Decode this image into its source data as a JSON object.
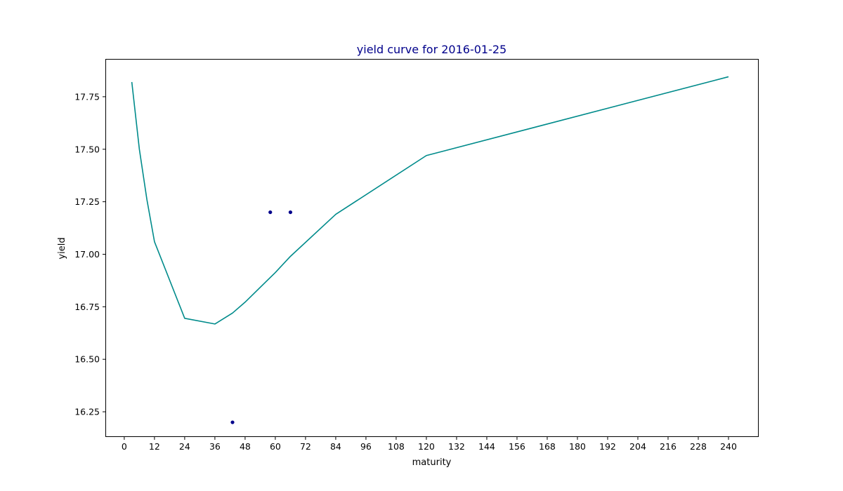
{
  "chart_data": {
    "type": "line",
    "title": "yield curve for 2016-01-25",
    "xlabel": "maturity",
    "ylabel": "yield",
    "xlim": [
      -7.5,
      252
    ],
    "ylim": [
      16.13,
      17.93
    ],
    "xticks": [
      0,
      12,
      24,
      36,
      48,
      60,
      72,
      84,
      96,
      108,
      120,
      132,
      144,
      156,
      168,
      180,
      192,
      204,
      216,
      228,
      240
    ],
    "yticks": [
      16.25,
      16.5,
      16.75,
      17.0,
      17.25,
      17.5,
      17.75
    ],
    "ytick_labels": [
      "16.25",
      "16.50",
      "16.75",
      "17.00",
      "17.25",
      "17.50",
      "17.75"
    ],
    "grid": false,
    "colors": {
      "curve": "#008b8b",
      "points": "#00008b",
      "title": "#00008b"
    },
    "series": [
      {
        "type": "line",
        "x": [
          3,
          6,
          9,
          12,
          24,
          36,
          43,
          48,
          60,
          66,
          84,
          120,
          240
        ],
        "y": [
          17.82,
          17.5,
          17.26,
          17.06,
          16.695,
          16.668,
          16.72,
          16.772,
          16.913,
          16.99,
          17.19,
          17.47,
          17.845
        ]
      },
      {
        "type": "scatter",
        "x": [
          43,
          58,
          66
        ],
        "y": [
          16.2,
          17.2,
          17.2
        ]
      }
    ]
  }
}
